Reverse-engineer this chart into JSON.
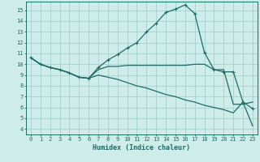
{
  "xlabel": "Humidex (Indice chaleur)",
  "bg_color": "#ceecea",
  "grid_color": "#a8d5d2",
  "line_color": "#1e6b65",
  "xlim": [
    -0.5,
    23.5
  ],
  "ylim": [
    3.5,
    15.8
  ],
  "xticks": [
    0,
    1,
    2,
    3,
    4,
    5,
    6,
    7,
    8,
    9,
    10,
    11,
    12,
    13,
    14,
    15,
    16,
    17,
    18,
    19,
    20,
    21,
    22,
    23
  ],
  "yticks": [
    4,
    5,
    6,
    7,
    8,
    9,
    10,
    11,
    12,
    13,
    14,
    15
  ],
  "series1_x": [
    0,
    1,
    2,
    3,
    4,
    5,
    6,
    7,
    8,
    9,
    10,
    11,
    12,
    13,
    14,
    15,
    16,
    17,
    18,
    19,
    20,
    21,
    22,
    23
  ],
  "series1_y": [
    10.6,
    10.0,
    9.7,
    9.5,
    9.2,
    8.8,
    8.7,
    9.7,
    10.4,
    10.9,
    11.5,
    12.0,
    13.0,
    13.8,
    14.8,
    15.1,
    15.5,
    14.7,
    11.1,
    9.5,
    9.3,
    9.3,
    6.5,
    5.9
  ],
  "series2_x": [
    0,
    1,
    2,
    3,
    4,
    5,
    6,
    7,
    8,
    9,
    10,
    11,
    12,
    13,
    14,
    15,
    16,
    17,
    18,
    19,
    20,
    21,
    22,
    23
  ],
  "series2_y": [
    10.6,
    10.0,
    9.7,
    9.5,
    9.2,
    8.8,
    8.7,
    9.5,
    9.8,
    9.8,
    9.9,
    9.9,
    9.9,
    9.9,
    9.9,
    9.9,
    9.9,
    10.0,
    10.0,
    9.5,
    9.5,
    6.3,
    6.3,
    6.5
  ],
  "series3_x": [
    0,
    1,
    2,
    3,
    4,
    5,
    6,
    7,
    8,
    9,
    10,
    11,
    12,
    13,
    14,
    15,
    16,
    17,
    18,
    19,
    20,
    21,
    22,
    23
  ],
  "series3_y": [
    10.6,
    10.0,
    9.7,
    9.5,
    9.2,
    8.8,
    8.7,
    9.0,
    8.8,
    8.6,
    8.3,
    8.0,
    7.8,
    7.5,
    7.2,
    7.0,
    6.7,
    6.5,
    6.2,
    6.0,
    5.8,
    5.5,
    6.5,
    4.3
  ]
}
